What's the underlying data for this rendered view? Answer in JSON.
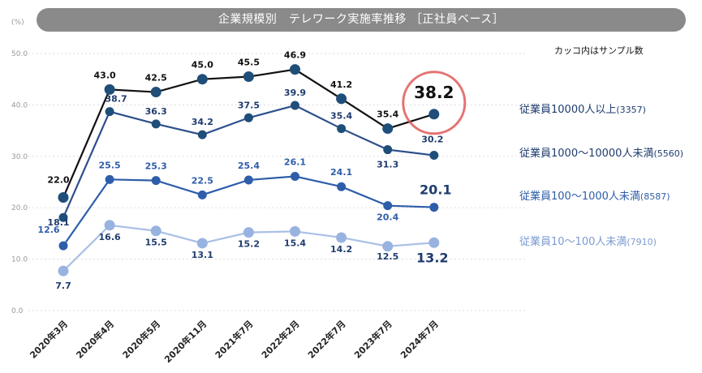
{
  "header": {
    "title": "企業規模別　テレワーク実施率推移 ［正社員ベース］",
    "note": "カッコ内はサンプル数"
  },
  "chart_data": {
    "type": "line",
    "title": "企業規模別　テレワーク実施率推移 ［正社員ベース］",
    "ylabel": "(%)",
    "ylim": [
      0,
      50
    ],
    "yticks": [
      "0.0",
      "10.0",
      "20.0",
      "30.0",
      "40.0",
      "50.0"
    ],
    "categories": [
      "2020年3月",
      "2020年4月",
      "2020年5月",
      "2020年11月",
      "2021年7月",
      "2022年2月",
      "2022年7月",
      "2023年7月",
      "2024年7月"
    ],
    "series": [
      {
        "name": "従業員10000人以上",
        "sample": "(3357)",
        "color": "#1f4e79",
        "line_color": "#111111",
        "values": [
          22.0,
          43.0,
          42.5,
          45.0,
          45.5,
          46.9,
          41.2,
          35.4,
          38.2
        ],
        "labels": [
          "22.0",
          "43.0",
          "42.5",
          "45.0",
          "45.5",
          "46.9",
          "41.2",
          "35.4",
          "38.2"
        ]
      },
      {
        "name": "従業員1000～10000人未満",
        "sample": "(5560)",
        "color": "#1f4e79",
        "line_color": "#2d4f8c",
        "values": [
          18.1,
          38.7,
          36.3,
          34.2,
          37.5,
          39.9,
          35.4,
          31.3,
          30.2
        ],
        "labels": [
          "18.1",
          "38.7",
          "36.3",
          "34.2",
          "37.5",
          "39.9",
          "35.4",
          "31.3",
          "30.2"
        ]
      },
      {
        "name": "従業員100～1000人未満",
        "sample": "(8587)",
        "color": "#2e5daa",
        "line_color": "#2e5daa",
        "values": [
          12.6,
          25.5,
          25.3,
          22.5,
          25.4,
          26.1,
          24.1,
          20.4,
          20.1
        ],
        "labels": [
          "12.6",
          "25.5",
          "25.3",
          "22.5",
          "25.4",
          "26.1",
          "24.1",
          "20.4",
          "20.1"
        ]
      },
      {
        "name": "従業員10～100人未満",
        "sample": "(7910)",
        "color": "#98b3e0",
        "line_color": "#a9c0e6",
        "values": [
          7.7,
          16.6,
          15.5,
          13.1,
          15.2,
          15.4,
          14.2,
          12.5,
          13.2
        ],
        "labels": [
          "7.7",
          "16.6",
          "15.5",
          "13.1",
          "15.2",
          "15.4",
          "14.2",
          "12.5",
          "13.2"
        ]
      }
    ],
    "highlight": {
      "series": "従業員10000人以上",
      "category": "2024年7月",
      "circle_color": "#e05a5a"
    }
  }
}
